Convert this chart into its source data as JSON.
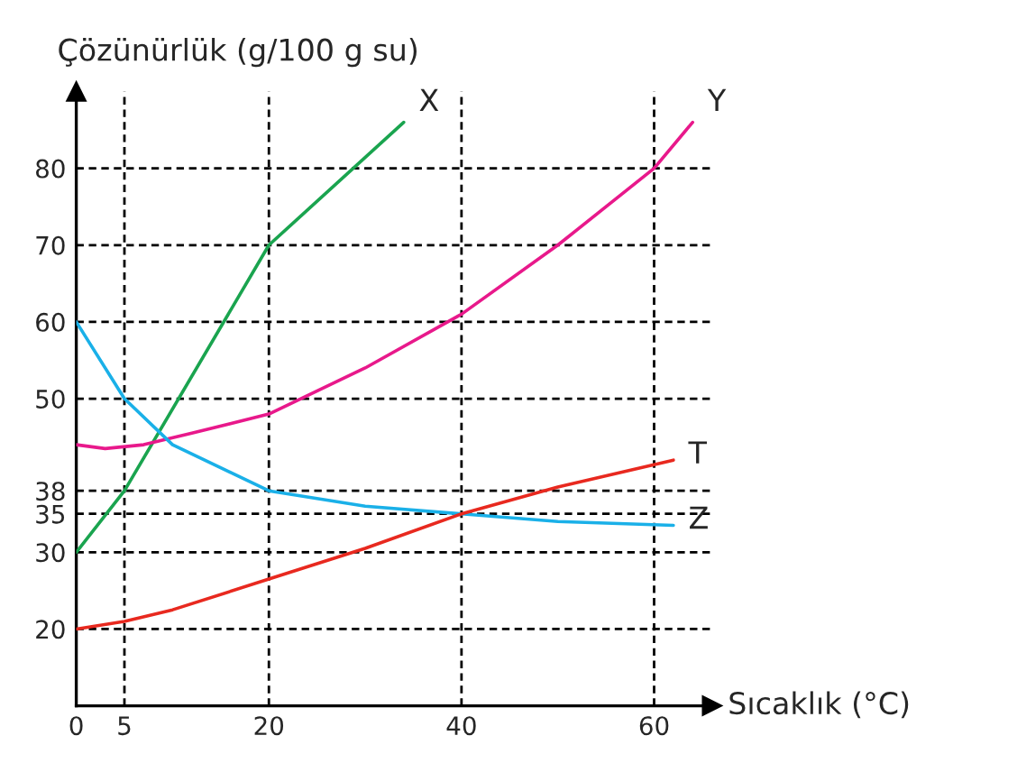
{
  "chart_data": {
    "type": "line",
    "xlabel": "Sıcaklık (°C)",
    "ylabel": "Çözünürlük (g/100 g su)",
    "xlim": [
      0,
      66
    ],
    "ylim": [
      10,
      90
    ],
    "xticks": [
      0,
      5,
      20,
      40,
      60
    ],
    "yticks": [
      20,
      30,
      35,
      38,
      50,
      60,
      70,
      80
    ],
    "grid": true,
    "legend": false,
    "marker": "none",
    "series": [
      {
        "name": "X",
        "color": "#1aa44f",
        "x": [
          0,
          5,
          20,
          34
        ],
        "values": [
          30,
          38,
          70,
          86
        ]
      },
      {
        "name": "Y",
        "color": "#e8198b",
        "x": [
          0,
          3,
          7,
          12,
          20,
          30,
          40,
          50,
          60,
          64
        ],
        "values": [
          44,
          43.5,
          44,
          45.5,
          48,
          54,
          61,
          70,
          80,
          86
        ]
      },
      {
        "name": "Z",
        "color": "#1ab0e8",
        "x": [
          0,
          5,
          10,
          20,
          30,
          40,
          50,
          62
        ],
        "values": [
          60,
          50,
          44,
          38,
          36,
          35,
          34,
          33.5
        ]
      },
      {
        "name": "T",
        "color": "#e8291f",
        "x": [
          0,
          5,
          10,
          20,
          30,
          40,
          50,
          62
        ],
        "values": [
          20,
          21,
          22.5,
          26.5,
          30.5,
          35,
          38.5,
          42
        ]
      }
    ]
  }
}
